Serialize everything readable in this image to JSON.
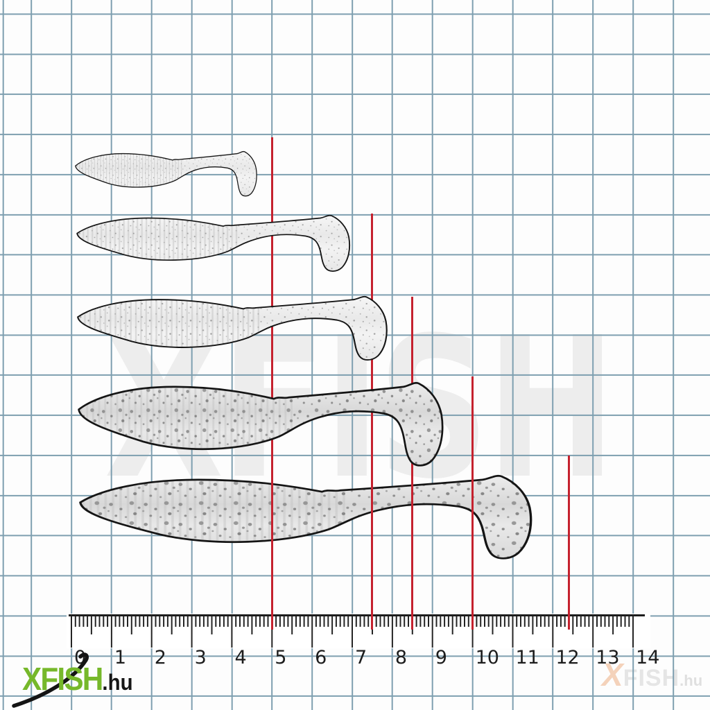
{
  "watermarks": {
    "center_text": "XFISH",
    "corner": {
      "x": "X",
      "fish": "FISH",
      "tld": ".hu"
    }
  },
  "logo": {
    "brand": "XFISH",
    "tld": ".hu"
  },
  "ruler": {
    "labels": [
      "0",
      "1",
      "2",
      "3",
      "4",
      "5",
      "6",
      "7",
      "8",
      "9",
      "10",
      "11",
      "12",
      "13",
      "14"
    ]
  },
  "lures": [
    {
      "id": "lure-1",
      "length_cm": 5.0
    },
    {
      "id": "lure-2",
      "length_cm": 7.5
    },
    {
      "id": "lure-3",
      "length_cm": 8.5
    },
    {
      "id": "lure-4",
      "length_cm": 10.0
    },
    {
      "id": "lure-5",
      "length_cm": 12.4
    }
  ],
  "colors": {
    "grid": "#7e9fb0",
    "red_line": "#c5212e",
    "lure_outline": "#151515",
    "logo_green": "#76b82a",
    "watermark_gray": "#ededed",
    "ruler_black": "#242424"
  }
}
